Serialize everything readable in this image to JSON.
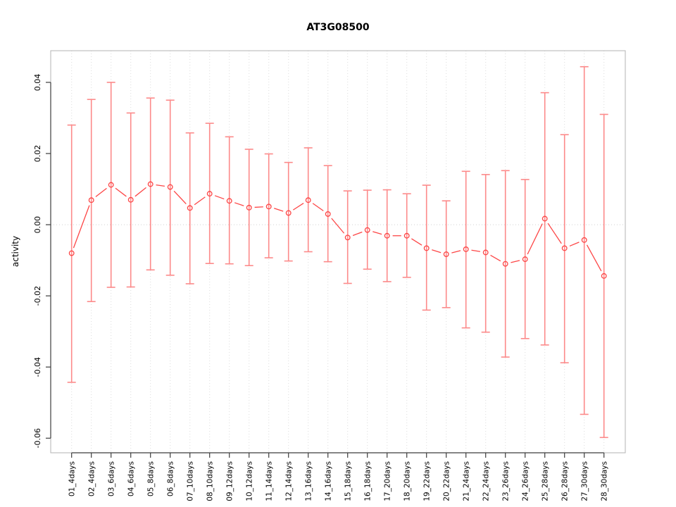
{
  "chart_data": {
    "type": "scatter",
    "title": "AT3G08500",
    "xlabel": "",
    "ylabel": "activity",
    "legend": "none",
    "grid": "vertical-dotted-per-category",
    "zero_line_dotted": true,
    "ylim": [
      -0.0641,
      0.0489
    ],
    "yticks": [
      {
        "value": -0.06,
        "label": "-0.06"
      },
      {
        "value": -0.04,
        "label": "-0.04"
      },
      {
        "value": -0.02,
        "label": "-0.02"
      },
      {
        "value": 0.0,
        "label": "0.00"
      },
      {
        "value": 0.02,
        "label": "0.02"
      },
      {
        "value": 0.04,
        "label": "0.04"
      }
    ],
    "categories": [
      "01_4days",
      "02_4days",
      "03_6days",
      "04_6days",
      "05_8days",
      "06_8days",
      "07_10days",
      "08_10days",
      "09_12days",
      "10_12days",
      "11_14days",
      "12_14days",
      "13_16days",
      "14_16days",
      "15_18days",
      "16_18days",
      "17_20days",
      "18_20days",
      "19_22days",
      "20_22days",
      "21_24days",
      "22_24days",
      "23_26days",
      "24_26days",
      "25_28days",
      "26_28days",
      "27_30days",
      "28_30days"
    ],
    "series": [
      {
        "name": "activity",
        "marker": "open-circle",
        "values": [
          -0.008,
          0.0069,
          0.0112,
          0.007,
          0.0114,
          0.0106,
          0.0047,
          0.0087,
          0.0067,
          0.0048,
          0.0051,
          0.0033,
          0.0069,
          0.003,
          -0.0036,
          -0.0015,
          -0.0031,
          -0.0031,
          -0.0066,
          -0.0083,
          -0.0069,
          -0.0078,
          -0.011,
          -0.0097,
          0.0017,
          -0.0066,
          -0.0043,
          -0.0144
        ],
        "upper": [
          0.028,
          0.0352,
          0.04,
          0.0314,
          0.0356,
          0.035,
          0.0258,
          0.0285,
          0.0247,
          0.0212,
          0.0199,
          0.0175,
          0.0216,
          0.0166,
          0.0095,
          0.0097,
          0.0098,
          0.0087,
          0.0111,
          0.0067,
          0.015,
          0.0141,
          0.0152,
          0.0127,
          0.0371,
          0.0253,
          0.0444,
          0.031
        ],
        "lower": [
          -0.0443,
          -0.0216,
          -0.0176,
          -0.0175,
          -0.0127,
          -0.0142,
          -0.0166,
          -0.0109,
          -0.011,
          -0.0115,
          -0.0093,
          -0.0102,
          -0.0076,
          -0.0104,
          -0.0165,
          -0.0125,
          -0.016,
          -0.0148,
          -0.024,
          -0.0233,
          -0.029,
          -0.0302,
          -0.0372,
          -0.032,
          -0.0338,
          -0.0388,
          -0.0533,
          -0.0598
        ]
      }
    ],
    "colors": {
      "point": "#fd4646",
      "line": "#fd4646",
      "error_bar": "#fc8a8a",
      "grid": "#dcdcdc",
      "zero_line": "#d0d0d0",
      "box": "#b3b3b3",
      "axis": "#3c3c3c",
      "text": "#000000",
      "background": "#ffffff"
    }
  }
}
